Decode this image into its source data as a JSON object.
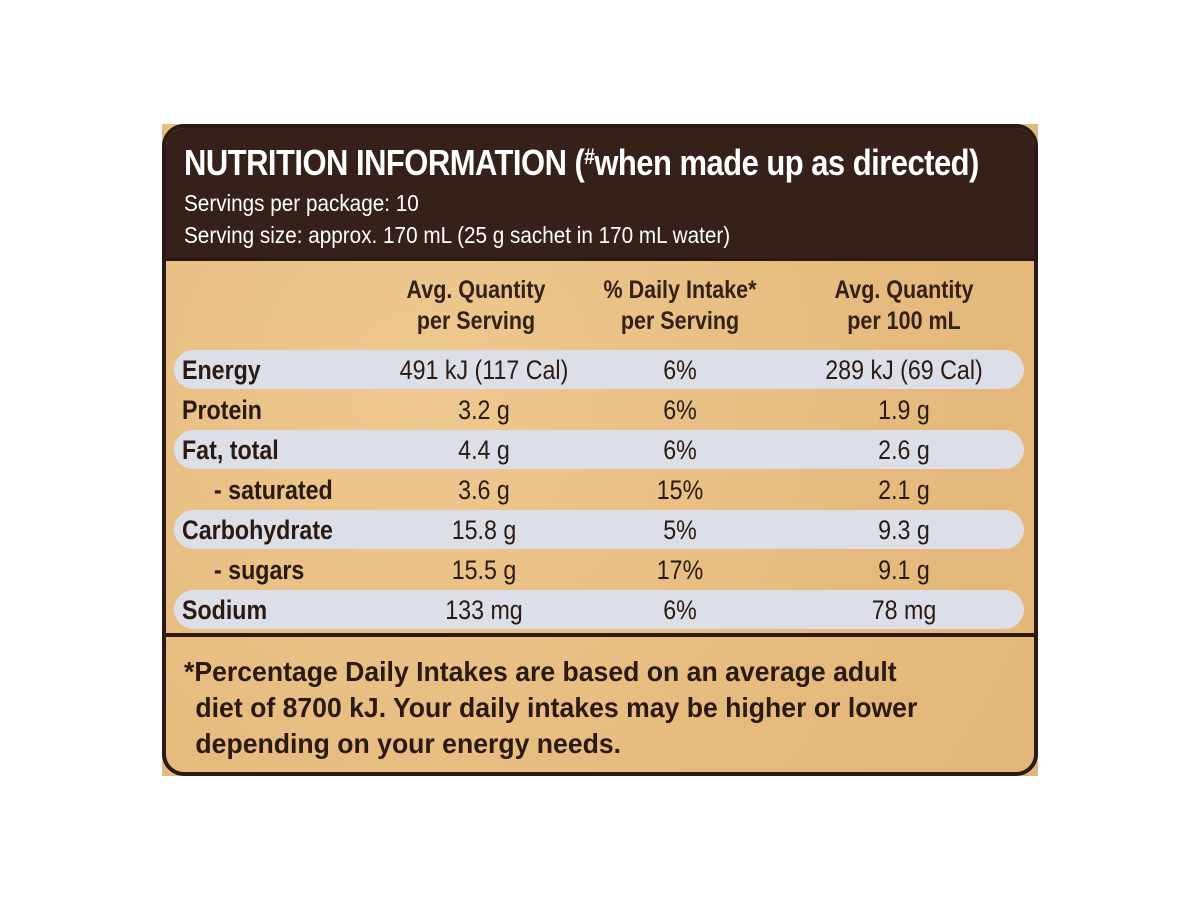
{
  "title": {
    "main": "NUTRITION INFORMATION (",
    "marker": "#",
    "rest": "when made up as directed)"
  },
  "servings_per_package": "Servings per package: 10",
  "serving_size": "Serving size: approx. 170 mL (25 g sachet in 170 mL water)",
  "columns": [
    {
      "line1": "Avg. Quantity",
      "line2": "per Serving"
    },
    {
      "line1": "% Daily Intake*",
      "line2": "per Serving"
    },
    {
      "line1": "Avg. Quantity",
      "line2": "per 100 mL"
    }
  ],
  "rows": [
    {
      "name": "Energy",
      "per_serving": "491 kJ (117 Cal)",
      "daily_intake": "6%",
      "per_100ml": "289 kJ (69 Cal)"
    },
    {
      "name": "Protein",
      "per_serving": "3.2 g",
      "daily_intake": "6%",
      "per_100ml": "1.9 g"
    },
    {
      "name": "Fat, total",
      "per_serving": "4.4 g",
      "daily_intake": "6%",
      "per_100ml": "2.6 g"
    },
    {
      "name": "- saturated",
      "per_serving": "3.6 g",
      "daily_intake": "15%",
      "per_100ml": "2.1 g"
    },
    {
      "name": "Carbohydrate",
      "per_serving": "15.8 g",
      "daily_intake": "5%",
      "per_100ml": "9.3 g"
    },
    {
      "name": "- sugars",
      "per_serving": "15.5 g",
      "daily_intake": "17%",
      "per_100ml": "9.1 g"
    },
    {
      "name": "Sodium",
      "per_serving": "133 mg",
      "daily_intake": "6%",
      "per_100ml": "78 mg"
    }
  ],
  "footnote": {
    "line1": "*Percentage Daily Intakes are based on an average adult",
    "line2": "diet of 8700 kJ. Your daily intakes may be higher or lower",
    "line3": "depending on your energy needs."
  },
  "colors": {
    "header_background": "#35211a",
    "card_background": "#e8be82",
    "row_shade": "#dcdfe8",
    "text_dark": "#2a1a13"
  }
}
